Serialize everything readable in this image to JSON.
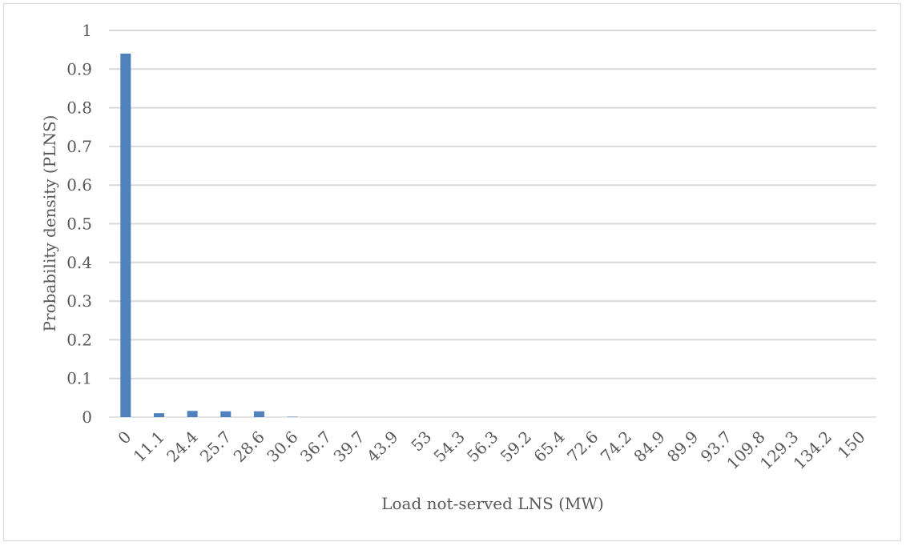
{
  "chart_data": {
    "type": "bar",
    "title": "",
    "xlabel": "Load not-served LNS (MW)",
    "ylabel": "Probability density  (PLNS)",
    "ylim": [
      0,
      1
    ],
    "yticks": [
      "0",
      "0.1",
      "0.2",
      "0.3",
      "0.4",
      "0.5",
      "0.6",
      "0.7",
      "0.8",
      "0.9",
      "1"
    ],
    "grid": true,
    "legend": "none",
    "categories": [
      "0",
      "11.1",
      "24.4",
      "25.7",
      "28.6",
      "30.6",
      "36.7",
      "39.7",
      "43.9",
      "53",
      "54.3",
      "56.3",
      "59.2",
      "65.4",
      "72.6",
      "74.2",
      "84.9",
      "89.9",
      "93.7",
      "109.8",
      "129.3",
      "134.2",
      "150"
    ],
    "values": [
      0.94,
      0.01,
      0.016,
      0.015,
      0.015,
      0.001,
      0.0008,
      0.0006,
      0.0005,
      0.0004,
      0.0004,
      0.0003,
      0.0003,
      0.0003,
      0.0002,
      0.0002,
      0.0002,
      0.0002,
      0.0001,
      0.0001,
      0.0001,
      0.0001,
      0.0001
    ],
    "colors": {
      "bar": "#4f81bd",
      "grid": "#d9d9d9",
      "text": "#595959"
    }
  }
}
